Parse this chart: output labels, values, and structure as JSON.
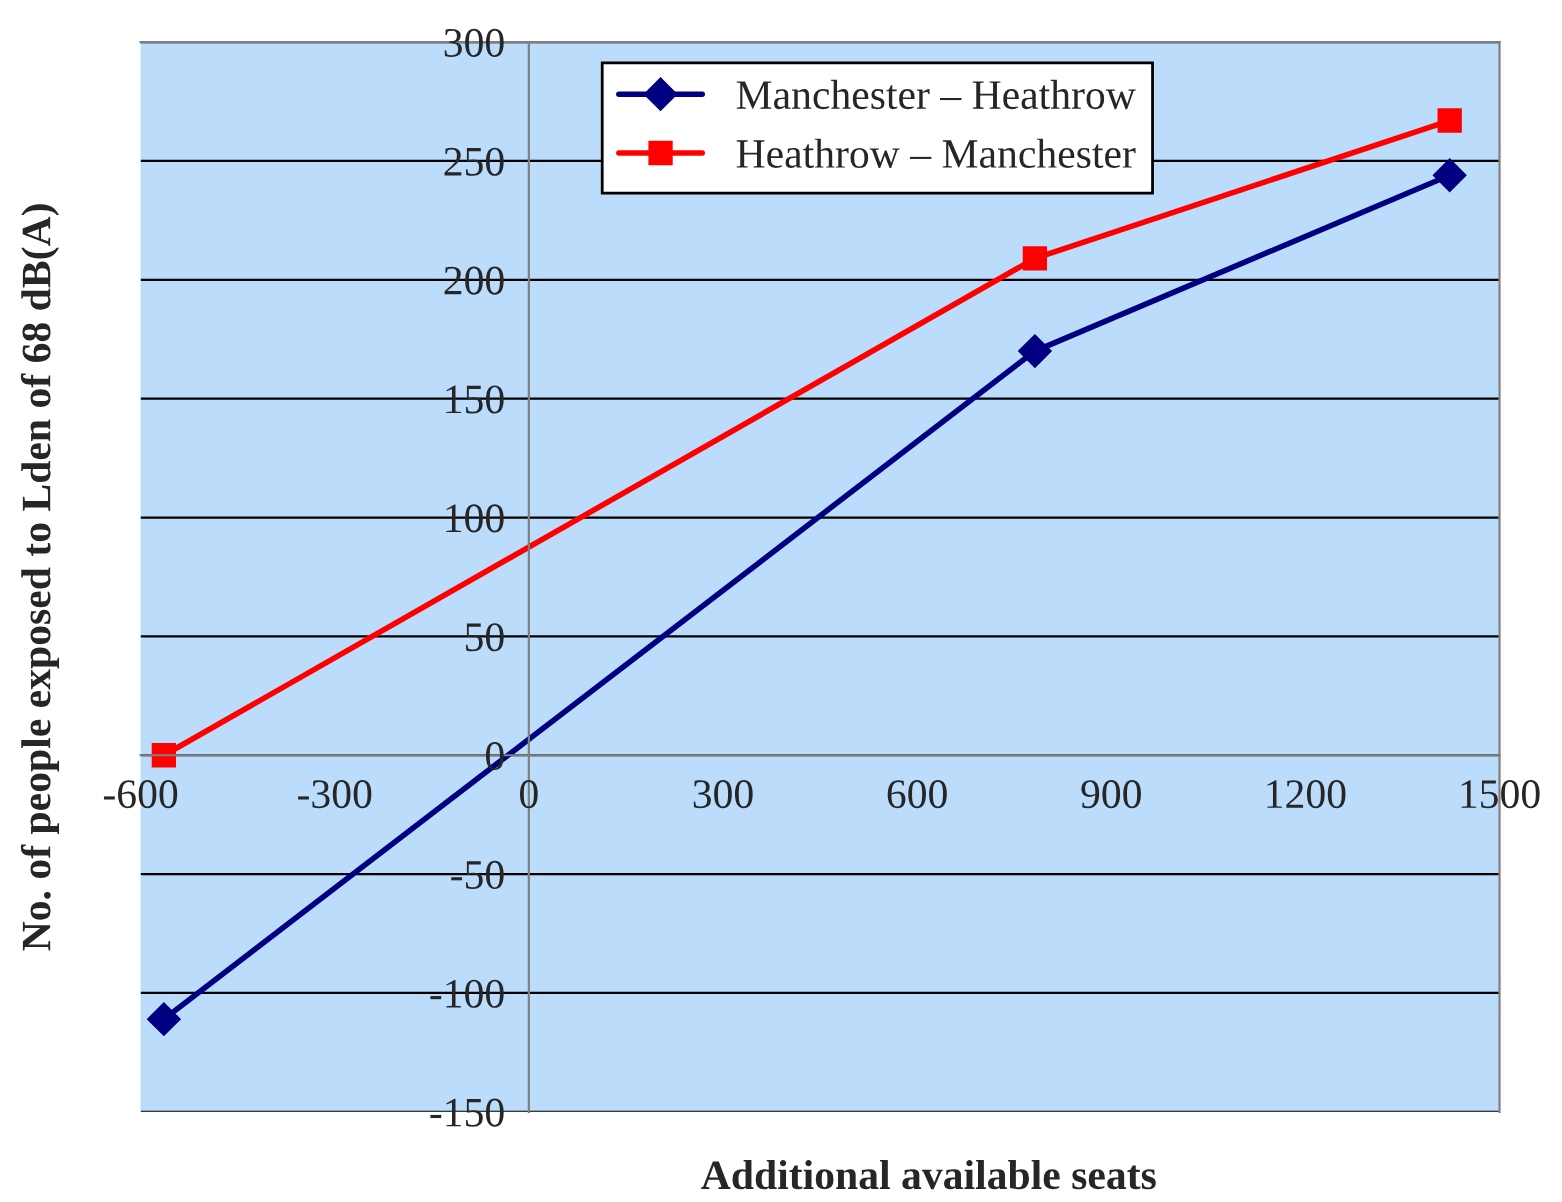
{
  "chart_data": {
    "type": "line",
    "xlabel": "Additional available seats",
    "ylabel": "No. of people exposed to Lden of 68 dB(A)",
    "series": [
      {
        "name": "Manchester – Heathrow",
        "color": "#000080",
        "marker": "diamond",
        "x": [
          -564,
          782,
          1423
        ],
        "values": [
          -111,
          170,
          244
        ]
      },
      {
        "name": "Heathrow – Manchester",
        "color": "#ff0000",
        "marker": "square",
        "x": [
          -564,
          782,
          1423
        ],
        "values": [
          0,
          209,
          267
        ]
      }
    ],
    "xlim": [
      -600,
      1500
    ],
    "xticks": [
      -600,
      -300,
      0,
      300,
      600,
      900,
      1200,
      1500
    ],
    "ylim": [
      -150,
      300
    ],
    "yticks": [
      -150,
      -100,
      -50,
      0,
      50,
      100,
      150,
      200,
      250,
      300
    ],
    "grid": "y",
    "legend": "top right"
  }
}
